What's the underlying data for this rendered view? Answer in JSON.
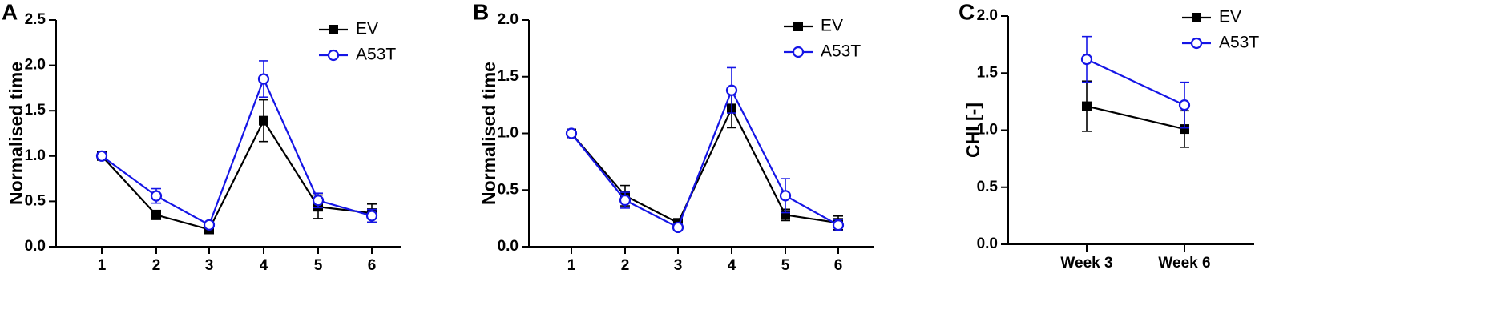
{
  "chart_data": [
    {
      "panel": "A",
      "type": "line",
      "ylabel": "Normalised time",
      "xlabel": "",
      "x": [
        "1",
        "2",
        "3",
        "4",
        "5",
        "6"
      ],
      "ylim": [
        0,
        2.5
      ],
      "yticks": [
        "0.0",
        "0.5",
        "1.0",
        "1.5",
        "2.0",
        "2.5"
      ],
      "legend_position": "top-right",
      "series": [
        {
          "name": "EV",
          "color": "#000000",
          "marker": "filled-square",
          "values": [
            1.0,
            0.35,
            0.19,
            1.39,
            0.44,
            0.37
          ],
          "errors": [
            0.03,
            0.05,
            0.03,
            0.23,
            0.13,
            0.1
          ]
        },
        {
          "name": "A53T",
          "color": "#1515e6",
          "marker": "open-circle",
          "values": [
            1.0,
            0.56,
            0.24,
            1.85,
            0.51,
            0.34
          ],
          "errors": [
            0.03,
            0.08,
            0.03,
            0.2,
            0.08,
            0.07
          ]
        }
      ]
    },
    {
      "panel": "B",
      "type": "line",
      "ylabel": "Normalised time",
      "xlabel": "",
      "x": [
        "1",
        "2",
        "3",
        "4",
        "5",
        "6"
      ],
      "ylim": [
        0,
        2.0
      ],
      "yticks": [
        "0.0",
        "0.5",
        "1.0",
        "1.5",
        "2.0"
      ],
      "legend_position": "top-right",
      "series": [
        {
          "name": "EV",
          "color": "#000000",
          "marker": "filled-square",
          "values": [
            1.0,
            0.45,
            0.21,
            1.22,
            0.28,
            0.21
          ],
          "errors": [
            0.02,
            0.09,
            0.03,
            0.17,
            0.05,
            0.06
          ]
        },
        {
          "name": "A53T",
          "color": "#1515e6",
          "marker": "open-circle",
          "values": [
            1.0,
            0.41,
            0.17,
            1.38,
            0.45,
            0.19
          ],
          "errors": [
            0.02,
            0.07,
            0.03,
            0.2,
            0.15,
            0.05
          ]
        }
      ]
    },
    {
      "panel": "C",
      "type": "line",
      "ylabel": "CHI [-]",
      "xlabel": "",
      "x": [
        "Week 3",
        "Week 6"
      ],
      "ylim": [
        0,
        2.0
      ],
      "yticks": [
        "0.0",
        "0.5",
        "1.0",
        "1.5",
        "2.0"
      ],
      "legend_position": "top-right",
      "series": [
        {
          "name": "EV",
          "color": "#000000",
          "marker": "filled-square",
          "values": [
            1.21,
            1.01
          ],
          "errors": [
            0.22,
            0.16
          ]
        },
        {
          "name": "A53T",
          "color": "#1515e6",
          "marker": "open-circle",
          "values": [
            1.62,
            1.22
          ],
          "errors": [
            0.2,
            0.2
          ]
        }
      ]
    }
  ]
}
